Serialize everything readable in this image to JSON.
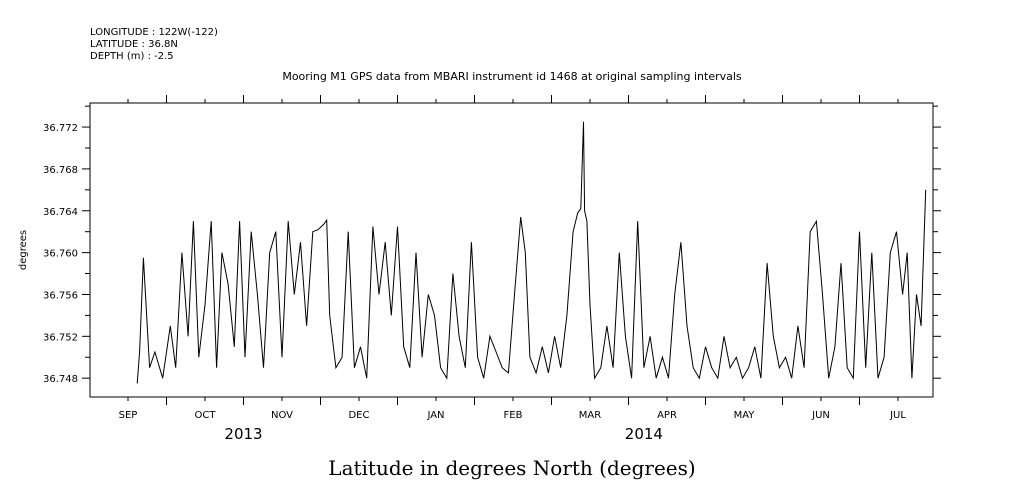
{
  "header": {
    "longitude": "LONGITUDE : 122W(-122)",
    "latitude": "LATITUDE : 36.8N",
    "depth": "DEPTH (m) : -2.5"
  },
  "chart_data": {
    "type": "line",
    "title": "Mooring M1 GPS data from MBARI instrument id 1468 at original sampling intervals",
    "xlabel": "Latitude in degrees North (degrees)",
    "ylabel": "degrees",
    "x_unit": "month",
    "ylim": [
      36.7462,
      36.7743
    ],
    "yticks": [
      36.748,
      36.752,
      36.756,
      36.76,
      36.764,
      36.768,
      36.772
    ],
    "ytick_labels": [
      "36.748",
      "36.752",
      "36.756",
      "36.760",
      "36.764",
      "36.768",
      "36.772"
    ],
    "months": [
      "SEP",
      "OCT",
      "NOV",
      "DEC",
      "JAN",
      "FEB",
      "MAR",
      "APR",
      "MAY",
      "JUN",
      "JUL"
    ],
    "years": [
      "2013",
      "2014"
    ],
    "grid": false,
    "series": [
      {
        "color": "#000000",
        "points": [
          [
            0.12,
            36.7475
          ],
          [
            0.15,
            36.7505
          ],
          [
            0.2,
            36.7595
          ],
          [
            0.28,
            36.749
          ],
          [
            0.35,
            36.7505
          ],
          [
            0.45,
            36.748
          ],
          [
            0.55,
            36.753
          ],
          [
            0.62,
            36.749
          ],
          [
            0.7,
            36.76
          ],
          [
            0.78,
            36.752
          ],
          [
            0.85,
            36.763
          ],
          [
            0.92,
            36.75
          ],
          [
            1.0,
            36.755
          ],
          [
            1.08,
            36.763
          ],
          [
            1.15,
            36.749
          ],
          [
            1.22,
            36.76
          ],
          [
            1.3,
            36.757
          ],
          [
            1.38,
            36.751
          ],
          [
            1.45,
            36.763
          ],
          [
            1.52,
            36.75
          ],
          [
            1.6,
            36.762
          ],
          [
            1.68,
            36.756
          ],
          [
            1.76,
            36.749
          ],
          [
            1.84,
            36.76
          ],
          [
            1.92,
            36.762
          ],
          [
            2.0,
            36.75
          ],
          [
            2.08,
            36.763
          ],
          [
            2.16,
            36.756
          ],
          [
            2.24,
            36.761
          ],
          [
            2.32,
            36.753
          ],
          [
            2.4,
            36.762
          ],
          [
            2.47,
            36.7622
          ],
          [
            2.54,
            36.7627
          ],
          [
            2.58,
            36.7631
          ],
          [
            2.62,
            36.754
          ],
          [
            2.7,
            36.749
          ],
          [
            2.78,
            36.75
          ],
          [
            2.86,
            36.762
          ],
          [
            2.94,
            36.749
          ],
          [
            3.02,
            36.751
          ],
          [
            3.1,
            36.748
          ],
          [
            3.18,
            36.7625
          ],
          [
            3.26,
            36.756
          ],
          [
            3.34,
            36.761
          ],
          [
            3.42,
            36.754
          ],
          [
            3.5,
            36.7625
          ],
          [
            3.58,
            36.751
          ],
          [
            3.66,
            36.749
          ],
          [
            3.74,
            36.76
          ],
          [
            3.82,
            36.75
          ],
          [
            3.9,
            36.756
          ],
          [
            3.98,
            36.754
          ],
          [
            4.06,
            36.749
          ],
          [
            4.14,
            36.748
          ],
          [
            4.22,
            36.758
          ],
          [
            4.3,
            36.752
          ],
          [
            4.38,
            36.749
          ],
          [
            4.46,
            36.761
          ],
          [
            4.54,
            36.75
          ],
          [
            4.62,
            36.748
          ],
          [
            4.7,
            36.752
          ],
          [
            4.78,
            36.7505
          ],
          [
            4.86,
            36.749
          ],
          [
            4.94,
            36.7485
          ],
          [
            5.02,
            36.756
          ],
          [
            5.1,
            36.7634
          ],
          [
            5.16,
            36.76
          ],
          [
            5.22,
            36.75
          ],
          [
            5.3,
            36.7485
          ],
          [
            5.38,
            36.751
          ],
          [
            5.46,
            36.7485
          ],
          [
            5.54,
            36.752
          ],
          [
            5.62,
            36.749
          ],
          [
            5.7,
            36.754
          ],
          [
            5.78,
            36.762
          ],
          [
            5.84,
            36.7638
          ],
          [
            5.88,
            36.7642
          ],
          [
            5.915,
            36.7725
          ],
          [
            5.93,
            36.764
          ],
          [
            5.96,
            36.763
          ],
          [
            6.0,
            36.755
          ],
          [
            6.06,
            36.748
          ],
          [
            6.14,
            36.749
          ],
          [
            6.22,
            36.753
          ],
          [
            6.3,
            36.749
          ],
          [
            6.38,
            36.76
          ],
          [
            6.46,
            36.752
          ],
          [
            6.54,
            36.748
          ],
          [
            6.62,
            36.763
          ],
          [
            6.7,
            36.749
          ],
          [
            6.78,
            36.752
          ],
          [
            6.86,
            36.748
          ],
          [
            6.94,
            36.75
          ],
          [
            7.02,
            36.748
          ],
          [
            7.1,
            36.756
          ],
          [
            7.18,
            36.761
          ],
          [
            7.26,
            36.753
          ],
          [
            7.34,
            36.749
          ],
          [
            7.42,
            36.748
          ],
          [
            7.5,
            36.751
          ],
          [
            7.58,
            36.749
          ],
          [
            7.66,
            36.748
          ],
          [
            7.74,
            36.752
          ],
          [
            7.82,
            36.749
          ],
          [
            7.9,
            36.75
          ],
          [
            7.98,
            36.748
          ],
          [
            8.06,
            36.749
          ],
          [
            8.14,
            36.751
          ],
          [
            8.22,
            36.748
          ],
          [
            8.3,
            36.759
          ],
          [
            8.38,
            36.752
          ],
          [
            8.46,
            36.749
          ],
          [
            8.54,
            36.75
          ],
          [
            8.62,
            36.748
          ],
          [
            8.7,
            36.753
          ],
          [
            8.78,
            36.749
          ],
          [
            8.86,
            36.762
          ],
          [
            8.94,
            36.763
          ],
          [
            9.02,
            36.756
          ],
          [
            9.1,
            36.748
          ],
          [
            9.18,
            36.751
          ],
          [
            9.26,
            36.759
          ],
          [
            9.34,
            36.749
          ],
          [
            9.42,
            36.748
          ],
          [
            9.5,
            36.762
          ],
          [
            9.58,
            36.749
          ],
          [
            9.66,
            36.76
          ],
          [
            9.74,
            36.748
          ],
          [
            9.82,
            36.75
          ],
          [
            9.9,
            36.76
          ],
          [
            9.98,
            36.762
          ],
          [
            10.06,
            36.756
          ],
          [
            10.12,
            36.76
          ],
          [
            10.18,
            36.748
          ],
          [
            10.24,
            36.756
          ],
          [
            10.3,
            36.753
          ],
          [
            10.36,
            36.766
          ]
        ]
      }
    ]
  }
}
